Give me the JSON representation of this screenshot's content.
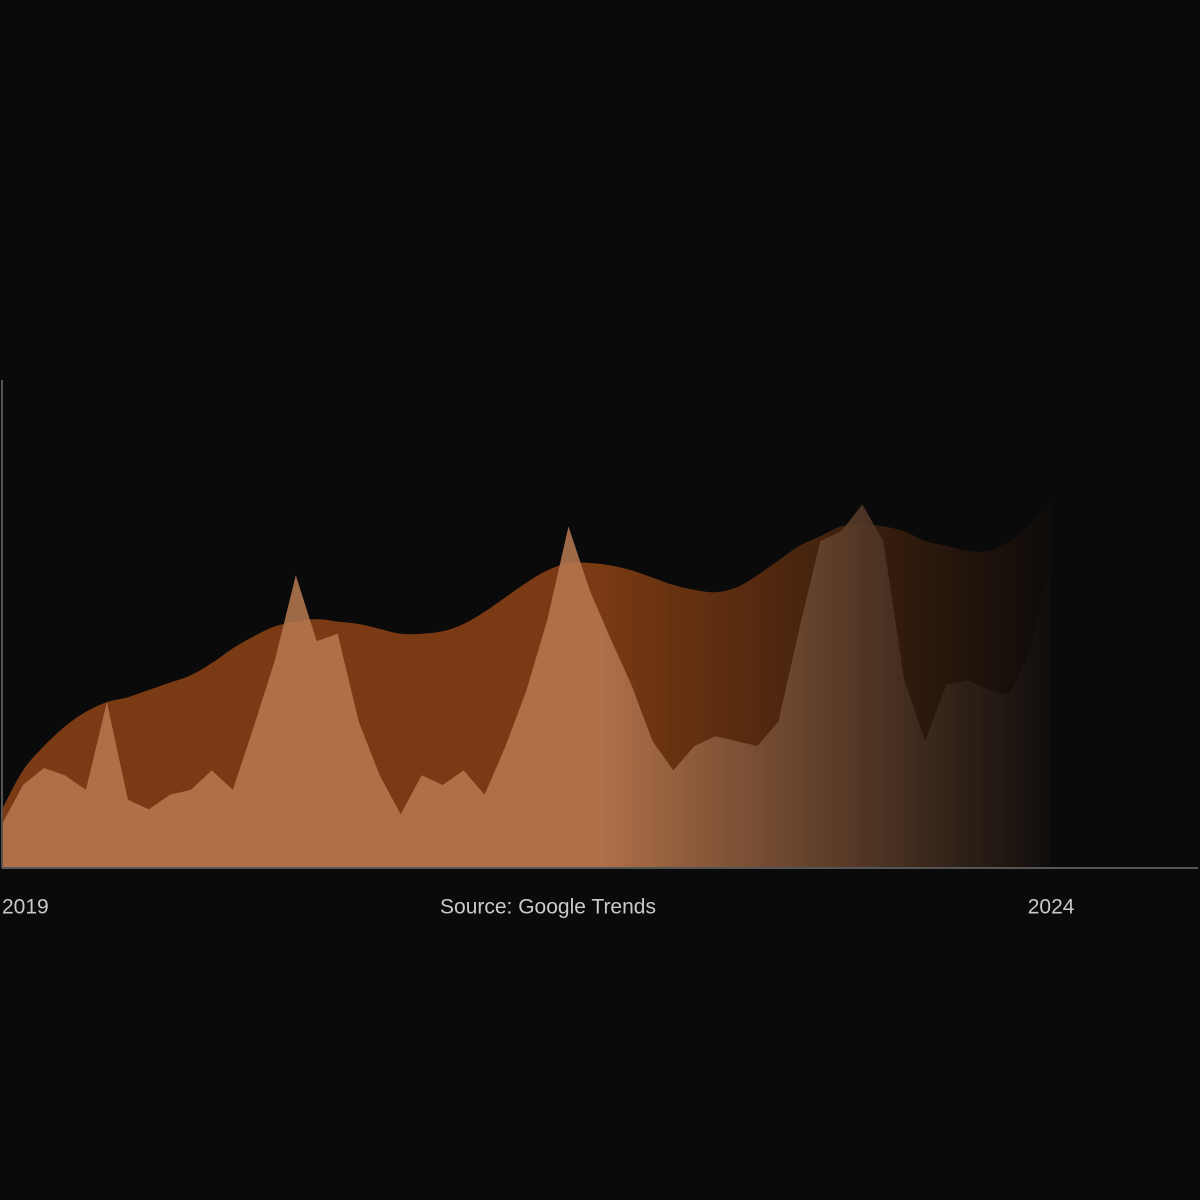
{
  "chart_data": {
    "type": "area",
    "source": "Source: Google Trends",
    "x": [
      2019,
      2019.1,
      2019.2,
      2019.3,
      2019.4,
      2019.5,
      2019.6,
      2019.7,
      2019.8,
      2019.9,
      2020,
      2020.1,
      2020.2,
      2020.3,
      2020.4,
      2020.5,
      2020.6,
      2020.7,
      2020.8,
      2020.9,
      2021,
      2021.1,
      2021.2,
      2021.3,
      2021.4,
      2021.5,
      2021.6,
      2021.7,
      2021.8,
      2021.9,
      2022,
      2022.1,
      2022.2,
      2022.3,
      2022.4,
      2022.5,
      2022.6,
      2022.7,
      2022.8,
      2022.9,
      2023,
      2023.1,
      2023.2,
      2023.3,
      2023.4,
      2023.5,
      2023.6,
      2023.7,
      2023.8,
      2023.9,
      2024
    ],
    "xlim": [
      2019,
      2024.7
    ],
    "xticks": [
      2019,
      2024
    ],
    "ylim": [
      0,
      100
    ],
    "series": [
      {
        "color": "#7a3a13",
        "smooth": true,
        "values": [
          12,
          20,
          25,
          29,
          32,
          34,
          35,
          36.5,
          38,
          39.5,
          42,
          45,
          47.5,
          49.5,
          50.5,
          51,
          50.5,
          50,
          49,
          48,
          48,
          48.5,
          50,
          52.5,
          55.5,
          58.5,
          61,
          62.5,
          62.5,
          62,
          61,
          59.5,
          58,
          57,
          56.5,
          57.5,
          60,
          63,
          66,
          68,
          70,
          70.5,
          70,
          69,
          67,
          66,
          65,
          65,
          67,
          70.5,
          75.5
        ]
      },
      {
        "color": "#b87a52",
        "smooth": false,
        "values": [
          9,
          17,
          20.5,
          19,
          16,
          34,
          14,
          12,
          15,
          16,
          20,
          16,
          29,
          42.5,
          60,
          46.5,
          48,
          30,
          19,
          11,
          19,
          17,
          20,
          15,
          25,
          36.5,
          51,
          70,
          57,
          47,
          37.5,
          26,
          20,
          25,
          27,
          26,
          25,
          30,
          49,
          67,
          69,
          74.5,
          67,
          38.5,
          26,
          37.5,
          38.5,
          36.5,
          35.5,
          44.5,
          63
        ]
      }
    ]
  }
}
